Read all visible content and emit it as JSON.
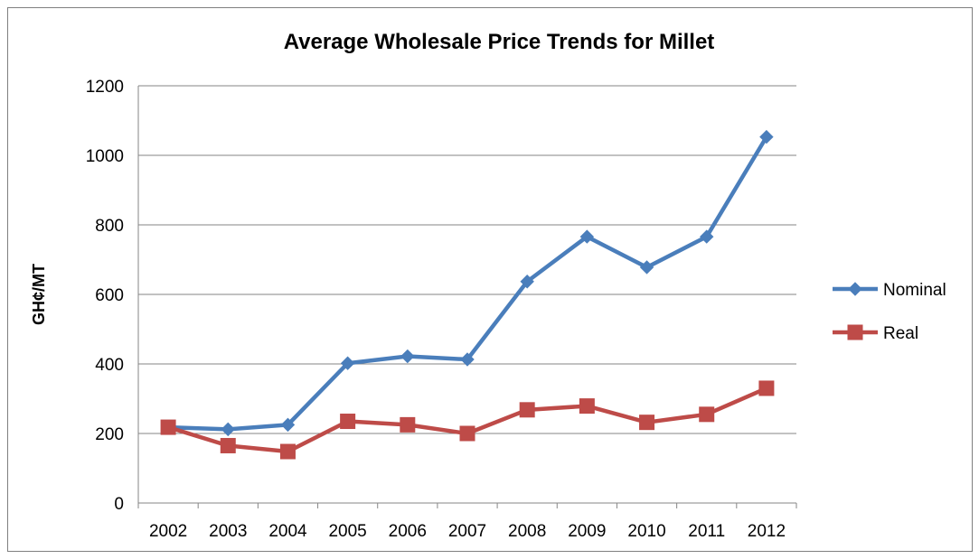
{
  "chart_data": {
    "type": "line",
    "title": "Average Wholesale Price Trends for Millet",
    "xlabel": "",
    "ylabel": "GH¢/MT",
    "categories": [
      "2002",
      "2003",
      "2004",
      "2005",
      "2006",
      "2007",
      "2008",
      "2009",
      "2010",
      "2011",
      "2012"
    ],
    "ylim": [
      0,
      1200
    ],
    "yticks": [
      "0",
      "200",
      "400",
      "600",
      "800",
      "1000",
      "1200"
    ],
    "grid": true,
    "legend_position": "right",
    "series": [
      {
        "name": "Nominal",
        "color": "#4a7ebb",
        "marker": "diamond",
        "values": [
          218,
          212,
          225,
          402,
          422,
          413,
          637,
          766,
          678,
          766,
          1053
        ]
      },
      {
        "name": "Real",
        "color": "#be4b48",
        "marker": "square",
        "values": [
          218,
          165,
          148,
          235,
          225,
          200,
          268,
          279,
          232,
          255,
          330
        ]
      }
    ]
  }
}
